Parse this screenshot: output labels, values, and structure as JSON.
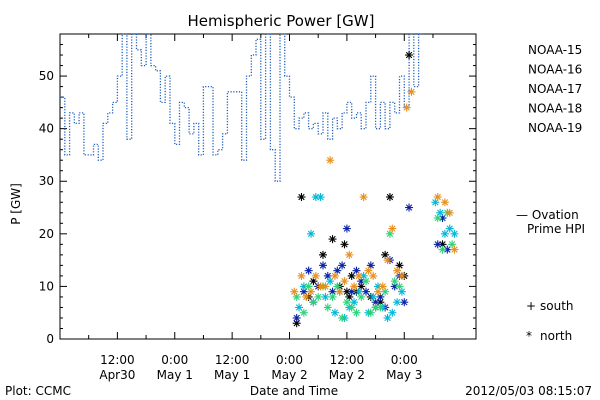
{
  "chart_data": {
    "type": "scatter",
    "title": "Hemispheric Power [GW]",
    "ylabel": "P [GW]",
    "xlabel": "Date and Time",
    "ylim": [
      0,
      58
    ],
    "xlim": [
      0,
      87
    ],
    "y_ticks": [
      0,
      10,
      20,
      30,
      40,
      50
    ],
    "x_ticks": [
      {
        "x": 12,
        "line1": "12:00",
        "line2": "Apr30"
      },
      {
        "x": 24,
        "line1": "0:00",
        "line2": "May 1"
      },
      {
        "x": 36,
        "line1": "12:00",
        "line2": "May 1"
      },
      {
        "x": 48,
        "line1": "0:00",
        "line2": "May 2"
      },
      {
        "x": 60,
        "line1": "12:00",
        "line2": "May 2"
      },
      {
        "x": 72,
        "line1": "0:00",
        "line2": "May 3"
      }
    ],
    "footer_left": "Plot: CCMC",
    "footer_right": "2012/05/03 08:15:07",
    "ovation": {
      "label1": "— Ovation",
      "label2": "Prime HPI",
      "color": "#1f5fbf",
      "x": [
        0,
        1,
        1,
        2,
        2,
        3,
        3,
        4,
        4,
        5,
        5,
        7,
        7,
        8,
        8,
        9,
        9,
        10,
        10,
        11,
        11,
        12,
        12,
        13,
        13,
        14,
        14,
        15,
        15,
        16,
        16,
        17,
        17,
        18,
        18,
        19,
        19,
        20,
        20,
        21,
        21,
        22,
        22,
        23,
        23,
        24,
        24,
        25,
        25,
        26,
        26,
        27,
        27,
        28,
        28,
        29,
        29,
        30,
        30,
        32,
        32,
        33,
        33,
        34,
        34,
        35,
        35,
        38,
        38,
        39,
        39,
        40,
        40,
        41,
        41,
        42,
        42,
        43,
        43,
        44,
        44,
        45,
        45,
        46,
        46,
        47,
        47,
        48,
        48,
        49,
        49,
        50,
        50,
        51,
        51,
        52,
        52,
        53,
        53,
        54,
        54,
        55,
        55,
        56,
        56,
        57,
        57,
        58,
        58,
        59,
        59,
        60,
        60,
        61,
        61,
        62,
        62,
        63,
        63,
        64,
        64,
        65,
        65,
        66,
        66,
        67,
        67,
        68,
        68,
        69,
        69,
        70,
        70,
        71,
        71,
        72,
        72,
        73,
        73,
        74,
        74,
        75,
        75,
        76
      ],
      "y": [
        46,
        46,
        35,
        35,
        43,
        43,
        41,
        41,
        43,
        43,
        35,
        35,
        37,
        37,
        34,
        34,
        41,
        41,
        43,
        43,
        45,
        45,
        50,
        50,
        58,
        58,
        38,
        38,
        58,
        58,
        55,
        55,
        52,
        52,
        58,
        58,
        52,
        52,
        51,
        51,
        45,
        45,
        50,
        50,
        41,
        41,
        37,
        37,
        45,
        45,
        44,
        44,
        39,
        39,
        41,
        41,
        35,
        35,
        48,
        48,
        35,
        35,
        36,
        36,
        39,
        39,
        47,
        47,
        34,
        34,
        50,
        50,
        54,
        54,
        57,
        57,
        38,
        38,
        58,
        58,
        36,
        36,
        30,
        30,
        58,
        58,
        50,
        50,
        46,
        46,
        40,
        40,
        42,
        42,
        43,
        43,
        40,
        40,
        41,
        41,
        39,
        39,
        43,
        43,
        38,
        38,
        42,
        42,
        40,
        40,
        43,
        43,
        45,
        45,
        42,
        42,
        43,
        43,
        40,
        40,
        45,
        45,
        50,
        50,
        40,
        40,
        45,
        45,
        40,
        40,
        45,
        45,
        43,
        43,
        50,
        50,
        44,
        44,
        58,
        58,
        48,
        48,
        58,
        58
      ]
    },
    "series": [
      {
        "name": "NOAA-15",
        "color": "#000000",
        "x": [
          49.5,
          50.5,
          52,
          53,
          55,
          57,
          58.5,
          59.5,
          60,
          60.5,
          61,
          62,
          63,
          65,
          66,
          67,
          68,
          69,
          71,
          72,
          73,
          80
        ],
        "y": [
          3,
          27,
          8,
          11,
          16,
          19,
          10,
          18,
          9,
          8,
          12,
          9,
          10,
          8,
          6,
          7,
          16,
          27,
          14,
          12,
          54,
          18
        ]
      },
      {
        "name": "NOAA-16",
        "color": "#0a22a8",
        "x": [
          49.5,
          51,
          52,
          53,
          54,
          55,
          56,
          57,
          58,
          59,
          60,
          61,
          62,
          63,
          64,
          65,
          66,
          67,
          68,
          69,
          70,
          71,
          72,
          73,
          79,
          80,
          81
        ],
        "y": [
          4,
          9,
          13,
          7,
          10,
          14,
          12,
          9,
          13,
          14,
          21,
          9,
          13,
          11,
          9,
          14,
          7,
          8,
          6,
          15,
          10,
          12,
          7,
          25,
          18,
          23,
          17
        ]
      },
      {
        "name": "NOAA-17",
        "color": "#00b8d8",
        "x": [
          50,
          51,
          52.5,
          53.5,
          54.5,
          55.5,
          56.5,
          57.5,
          58.5,
          59.5,
          60.5,
          61.5,
          62.5,
          63.5,
          64.5,
          65.5,
          66.5,
          67.5,
          68.5,
          69.5,
          70.5,
          71.5,
          78.5,
          79.5,
          80.5,
          81.5,
          82.5
        ],
        "y": [
          6,
          10,
          20,
          27,
          27,
          8,
          11,
          5,
          9,
          4,
          6,
          7,
          9,
          12,
          5,
          8,
          10,
          6,
          4,
          5,
          7,
          9,
          26,
          24,
          20,
          21,
          20
        ]
      },
      {
        "name": "NOAA-18",
        "color": "#2ed27a",
        "x": [
          49.5,
          51,
          52,
          53,
          54,
          55,
          56,
          57,
          58,
          59,
          60,
          61,
          62,
          63,
          64,
          65,
          66,
          67,
          68,
          69,
          70,
          71,
          79,
          80,
          81,
          82
        ],
        "y": [
          8,
          5,
          10,
          7,
          8,
          10,
          6,
          8,
          10,
          4,
          7,
          6,
          5,
          8,
          11,
          5,
          6,
          6,
          9,
          20,
          11,
          10,
          23,
          17,
          24,
          18
        ]
      },
      {
        "name": "NOAA-19",
        "color": "#e8901e",
        "x": [
          49,
          50.5,
          51.5,
          52.5,
          53.5,
          54.5,
          55.5,
          56.5,
          57.5,
          58.5,
          59.5,
          60.5,
          61.5,
          62.5,
          63.5,
          64.5,
          65.5,
          66.5,
          67.5,
          68.5,
          69.5,
          70.5,
          71.5,
          72.5,
          73.5,
          79,
          80.5,
          81.5,
          82.5
        ],
        "y": [
          9,
          12,
          8,
          9,
          12,
          10,
          10,
          34,
          12,
          9,
          11,
          16,
          10,
          12,
          27,
          13,
          12,
          9,
          10,
          15,
          21,
          13,
          12,
          44,
          47,
          27,
          26,
          24,
          17
        ]
      }
    ],
    "marker_legend": [
      {
        "symbol": "+",
        "label": "south"
      },
      {
        "symbol": "*",
        "label": "north"
      }
    ]
  }
}
